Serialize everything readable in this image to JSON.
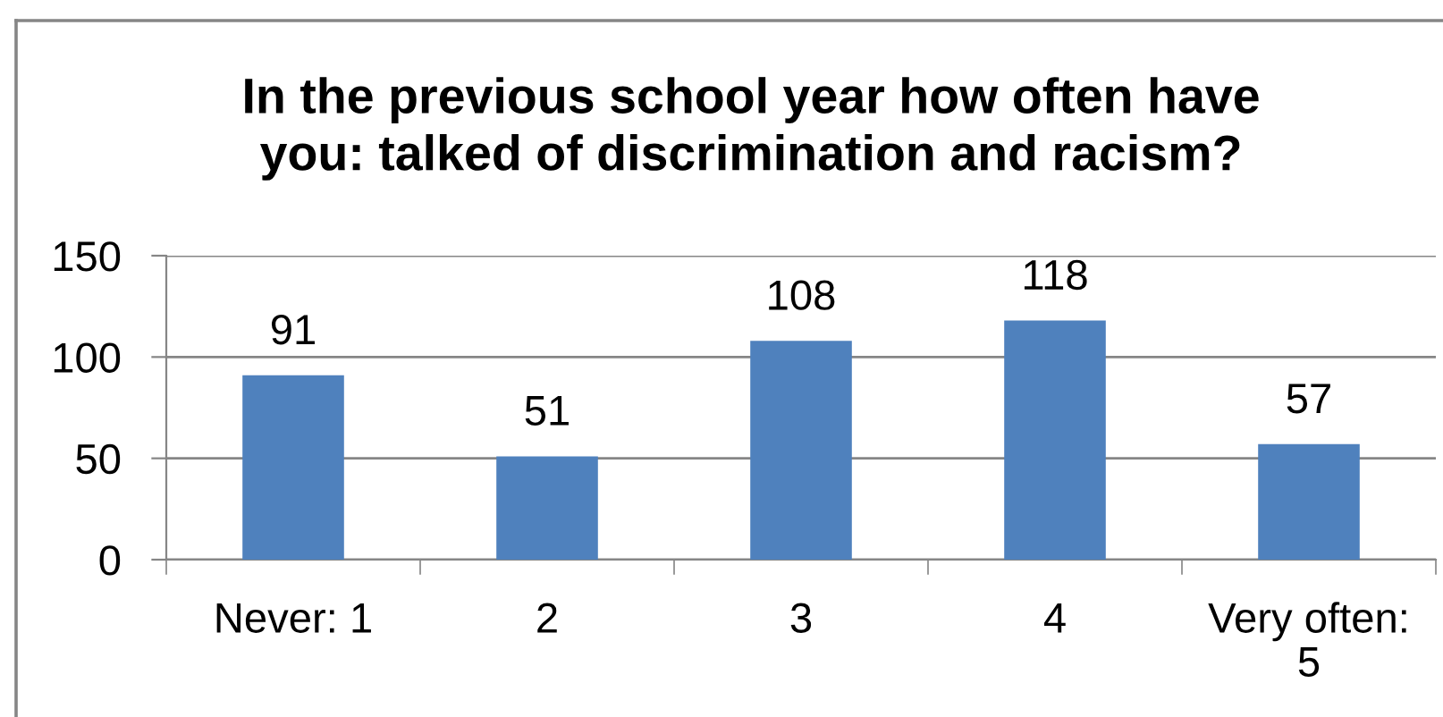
{
  "chart_data": {
    "type": "bar",
    "title": "In the previous school year how often have\nyou: talked of discrimination and racism?",
    "categories": [
      "Never: 1",
      "2",
      "3",
      "4",
      "Very often: 5"
    ],
    "values": [
      91,
      51,
      108,
      118,
      57
    ],
    "color": "#4f81bd",
    "ylim": [
      0,
      150
    ],
    "yticks": [
      0,
      50,
      100,
      150
    ],
    "grid": "y",
    "data_labels": true
  }
}
